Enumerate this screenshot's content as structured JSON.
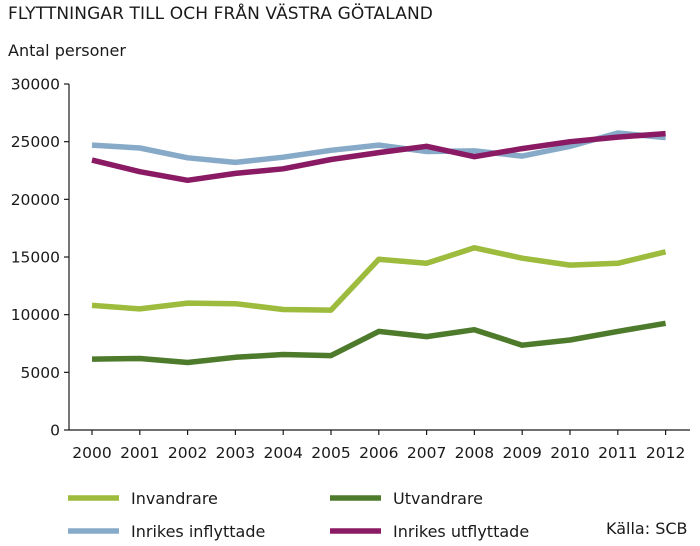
{
  "chart_data": {
    "type": "line",
    "title": "FLYTTNINGAR TILL OCH FRÅN VÄSTRA GÖTALAND",
    "ylabel": "Antal personer",
    "xlabel": "",
    "source": "Källa: SCB",
    "ylim": [
      0,
      30000
    ],
    "yticks": [
      0,
      5000,
      10000,
      15000,
      20000,
      25000,
      30000
    ],
    "grid": false,
    "legend_position": "bottom",
    "x": [
      "2000",
      "2001",
      "2002",
      "2003",
      "2004",
      "2005",
      "2006",
      "2007",
      "2008",
      "2009",
      "2010",
      "2011",
      "2012"
    ],
    "series": [
      {
        "name": "Invandrare",
        "color": "#9dbb3c",
        "values": [
          10800,
          10500,
          11000,
          10950,
          10450,
          10400,
          14800,
          14450,
          15800,
          14900,
          14300,
          14450,
          15450
        ]
      },
      {
        "name": "Utvandrare",
        "color": "#4d7a2b",
        "values": [
          6150,
          6200,
          5850,
          6300,
          6550,
          6450,
          8550,
          8100,
          8700,
          7350,
          7800,
          8550,
          9250
        ]
      },
      {
        "name": "Inrikes inflyttade",
        "color": "#87aac8",
        "values": [
          24700,
          24450,
          23600,
          23200,
          23650,
          24250,
          24700,
          24150,
          24200,
          23750,
          24600,
          25750,
          25350
        ]
      },
      {
        "name": "Inrikes utflyttade",
        "color": "#8a1a63",
        "values": [
          23400,
          22400,
          21650,
          22250,
          22650,
          23450,
          24050,
          24600,
          23700,
          24400,
          25000,
          25400,
          25700
        ]
      }
    ]
  }
}
